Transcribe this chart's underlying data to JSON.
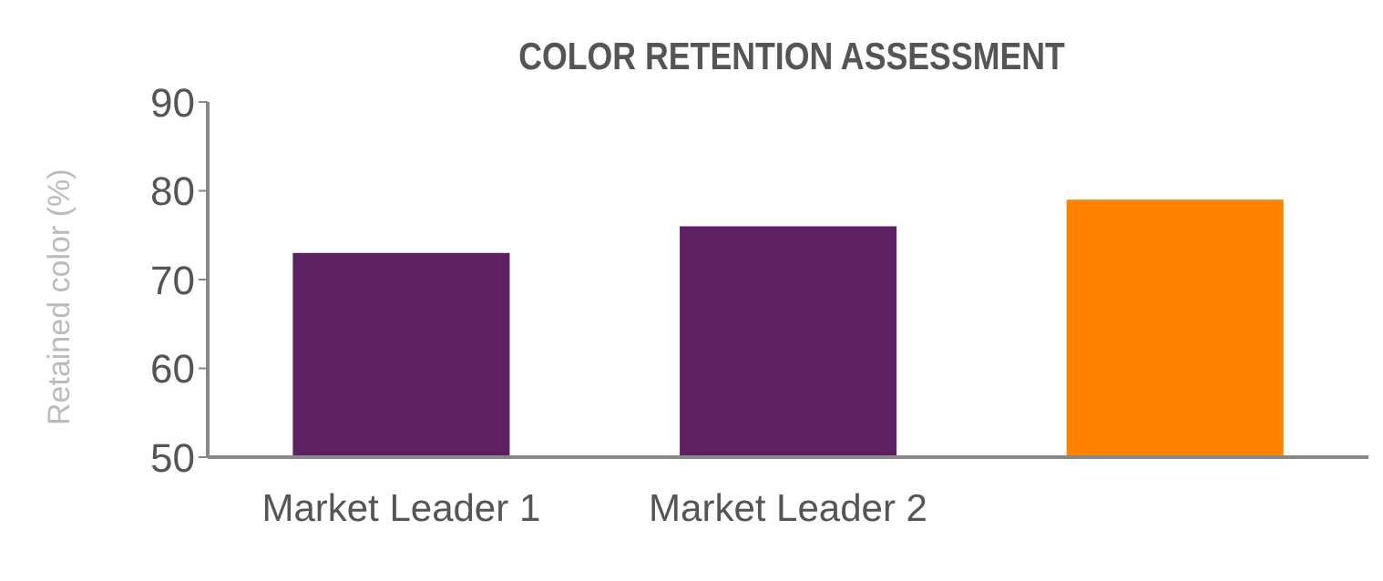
{
  "chart_data": {
    "type": "bar",
    "title": "COLOR RETENTION ASSESSMENT",
    "ylabel": "Retained color (%)",
    "categories": [
      "Market Leader 1",
      "Market Leader 2",
      null
    ],
    "values": [
      73,
      76,
      79
    ],
    "colors": [
      "#5d2162",
      "#5d2162",
      "#ff8200"
    ],
    "ylim": [
      50,
      90
    ],
    "yticks": [
      50,
      60,
      70,
      80,
      90
    ],
    "grid": false,
    "legend": false
  }
}
